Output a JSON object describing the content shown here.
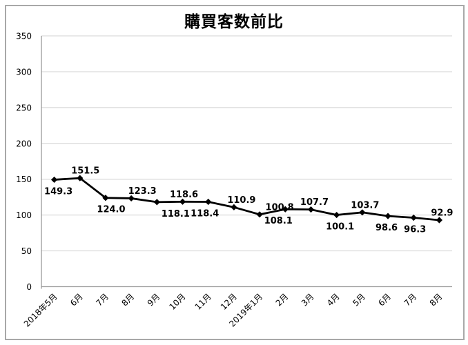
{
  "chart_data": {
    "type": "line",
    "title": "購買客数前比",
    "categories": [
      "2018年5月",
      "6月",
      "7月",
      "8月",
      "9月",
      "10月",
      "11月",
      "12月",
      "2019年1月",
      "2月",
      "3月",
      "4月",
      "5月",
      "6月",
      "7月",
      "8月"
    ],
    "series": [
      {
        "name": "購買客数前比",
        "values": [
          149.3,
          151.5,
          124.0,
          123.3,
          118.1,
          118.6,
          118.4,
          110.9,
          100.8,
          108.1,
          107.7,
          100.1,
          103.7,
          98.6,
          96.3,
          92.9
        ]
      }
    ],
    "data_labels": [
      {
        "text": "149.3",
        "pos": "below",
        "dx": 6
      },
      {
        "text": "151.5",
        "pos": "above",
        "dx": 8
      },
      {
        "text": "124.0",
        "pos": "below",
        "dx": 8
      },
      {
        "text": "123.3",
        "pos": "above",
        "dx": 16
      },
      {
        "text": "118.1",
        "pos": "below",
        "dx": 27
      },
      {
        "text": "118.6",
        "pos": "above",
        "dx": 2
      },
      {
        "text": "118.4",
        "pos": "below",
        "dx": -5
      },
      {
        "text": "110.9",
        "pos": "above",
        "dx": 11
      },
      {
        "text": "100.8",
        "pos": "above",
        "dx": 29
      },
      {
        "text": "108.1",
        "pos": "below",
        "dx": -10
      },
      {
        "text": "107.7",
        "pos": "above",
        "dx": 5
      },
      {
        "text": "100.1",
        "pos": "below",
        "dx": 5
      },
      {
        "text": "103.7",
        "pos": "above",
        "dx": 4
      },
      {
        "text": "98.6",
        "pos": "below",
        "dx": -2
      },
      {
        "text": "96.3",
        "pos": "below",
        "dx": 2
      },
      {
        "text": "92.9",
        "pos": "above",
        "dx": 4
      }
    ],
    "y_ticks": [
      0,
      50,
      100,
      150,
      200,
      250,
      300,
      350
    ],
    "ylim": [
      0,
      350
    ],
    "xlabel": "",
    "ylabel": "",
    "grid": "horizontal",
    "legend": "none",
    "marker": "diamond",
    "colors": {
      "line": "#000000",
      "marker": "#000000",
      "gridline": "#d9d9d9",
      "axis": "#9a9a9a",
      "text": "#000000",
      "background": "#ffffff",
      "frame_border": "#a8a8a8"
    }
  }
}
